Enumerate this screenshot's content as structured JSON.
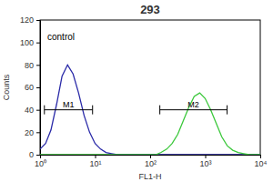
{
  "chart_data": {
    "type": "line",
    "title": "293",
    "x_label": "FL1-H",
    "y_label": "Counts",
    "annotation": "control",
    "log": "x",
    "grid": false,
    "x": [
      1,
      1.26,
      1.58,
      2,
      2.51,
      3.16,
      3.98,
      5.01,
      6.31,
      7.94,
      10,
      12.6,
      15.8,
      20,
      25.1,
      31.6,
      39.8,
      50.1,
      63.1,
      79.4,
      100,
      126,
      158,
      200,
      251,
      316,
      398,
      501,
      631,
      794,
      1000,
      1259,
      1585,
      1995,
      2512,
      3162,
      3981,
      5012,
      6310,
      7943,
      10000
    ],
    "series": [
      {
        "color": "#2a2aa8",
        "values": [
          5,
          10,
          22,
          45,
          70,
          80,
          72,
          55,
          35,
          20,
          10,
          5,
          2,
          1,
          0,
          0,
          0,
          0,
          0,
          0,
          0,
          0,
          0,
          0,
          0,
          0,
          0,
          0,
          0,
          0,
          0,
          0,
          0,
          0,
          0,
          0,
          0,
          0,
          0,
          0,
          0
        ]
      },
      {
        "color": "#3cc83c",
        "values": [
          0,
          0,
          0,
          0,
          0,
          0,
          0,
          0,
          0,
          0,
          0,
          0,
          0,
          0,
          0,
          0,
          0,
          0,
          0,
          0,
          0,
          0,
          2,
          5,
          10,
          18,
          30,
          42,
          52,
          55,
          50,
          40,
          28,
          16,
          8,
          4,
          2,
          1,
          0,
          0,
          0
        ]
      }
    ],
    "gates": [
      {
        "label": "M1",
        "range": [
          1.2,
          9
        ],
        "y": 40,
        "color": "#000000"
      },
      {
        "label": "M2",
        "range": [
          150,
          2500
        ],
        "y": 40,
        "color": "#000000"
      }
    ],
    "xlim": [
      1,
      10000
    ],
    "xticks": [
      {
        "value": 1,
        "label": "10⁰"
      },
      {
        "value": 10,
        "label": "10¹"
      },
      {
        "value": 100,
        "label": "10²"
      },
      {
        "value": 1000,
        "label": "10³"
      },
      {
        "value": 10000,
        "label": "10⁴"
      }
    ],
    "ylim": [
      0,
      120
    ],
    "yticks": [
      0,
      20,
      40,
      60,
      80,
      100,
      120
    ]
  }
}
